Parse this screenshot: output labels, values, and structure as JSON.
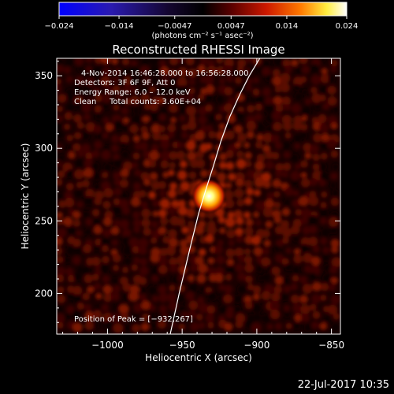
{
  "chart_data": {
    "type": "heatmap",
    "title": "Reconstructed RHESSI Image",
    "xlabel": "Heliocentric X (arcsec)",
    "ylabel": "Heliocentric Y (arcsec)",
    "xlim": [
      -1034,
      -844
    ],
    "ylim": [
      172,
      362
    ],
    "x_ticks": [
      -1000,
      -950,
      -900,
      -850
    ],
    "y_ticks": [
      200,
      250,
      300,
      350
    ],
    "x_tick_labels": [
      "−1000",
      "−950",
      "−900",
      "−850"
    ],
    "y_tick_labels": [
      "200",
      "250",
      "300",
      "350"
    ],
    "colorbar": {
      "min": -0.024,
      "max": 0.024,
      "ticks": [
        -0.024,
        -0.014,
        -0.0047,
        0.0047,
        0.014,
        0.024
      ],
      "tick_labels": [
        "−0.024",
        "−0.014",
        "−0.0047",
        "0.0047",
        "0.014",
        "0.024"
      ],
      "unit_label": "(photons cm⁻² s⁻¹ asec⁻²)"
    },
    "annotations": {
      "time_range": "4‑Nov‑2014 16:46:28.000 to 16:56:28.000",
      "detectors": "Detectors: 3F 6F 9F, Att 0",
      "energy": "Energy Range: 6.0 – 12.0 keV",
      "clean_method": "Clean",
      "total_counts": "Total counts: 3.60E+04",
      "peak_label": "Position of Peak = [−932,267]"
    },
    "peak": {
      "x": -932,
      "y": 267,
      "value": 0.024
    },
    "limb_curve": {
      "x": [
        -958,
        -952,
        -945,
        -939,
        -934,
        -929,
        -924,
        -918,
        -911,
        -905,
        -898
      ],
      "y": [
        172,
        200,
        230,
        255,
        272,
        288,
        305,
        322,
        338,
        350,
        362
      ]
    },
    "grid": false,
    "colors": {
      "background": "#000000",
      "limb": "#ffffff",
      "colormap": [
        "#0000ff",
        "#1c1070",
        "#2a0a40",
        "#000000",
        "#4a0000",
        "#cc2200",
        "#ff8800",
        "#ffff60",
        "#ffffff"
      ]
    }
  },
  "footer": {
    "timestamp": "22‑Jul‑2017 10:35"
  }
}
